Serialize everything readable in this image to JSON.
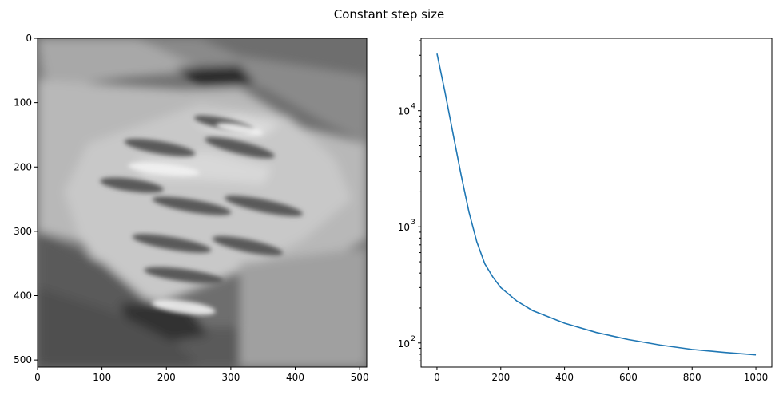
{
  "figure": {
    "title": "Constant step size"
  },
  "chart_data": [
    {
      "type": "heatmap",
      "colormap": "gray",
      "xlim": [
        0,
        511
      ],
      "ylim": [
        511,
        0
      ],
      "xticks": [
        0,
        100,
        200,
        300,
        400,
        500
      ],
      "yticks": [
        0,
        100,
        200,
        300,
        400,
        500
      ],
      "xtick_labels": [
        "0",
        "100",
        "200",
        "300",
        "400",
        "500"
      ],
      "ytick_labels": [
        "0",
        "100",
        "200",
        "300",
        "400",
        "500"
      ],
      "grid": false
    },
    {
      "type": "line",
      "yscale": "log",
      "xlim": [
        -50,
        1050
      ],
      "ylim": [
        62,
        42000
      ],
      "xticks": [
        0,
        200,
        400,
        600,
        800,
        1000
      ],
      "xtick_labels": [
        "0",
        "200",
        "400",
        "600",
        "800",
        "1000"
      ],
      "yticks": [
        100,
        1000,
        10000
      ],
      "ytick_labels": [
        "10",
        "10",
        "10"
      ],
      "ytick_exponents": [
        "2",
        "3",
        "4"
      ],
      "grid": false,
      "series": [
        {
          "color": "#1f77b4",
          "x": [
            0,
            25,
            50,
            75,
            100,
            125,
            150,
            175,
            200,
            250,
            300,
            400,
            500,
            600,
            700,
            800,
            900,
            1000
          ],
          "y": [
            31000,
            14500,
            6400,
            2850,
            1350,
            740,
            480,
            370,
            300,
            230,
            190,
            148,
            123,
            107,
            96,
            88,
            83,
            79
          ]
        }
      ]
    }
  ]
}
